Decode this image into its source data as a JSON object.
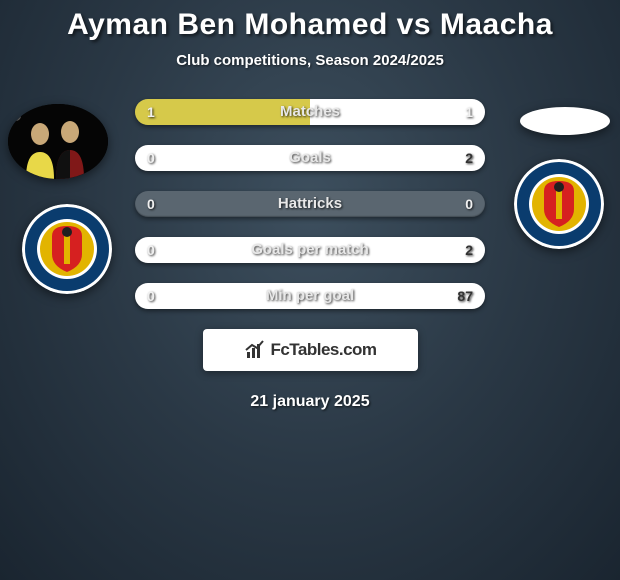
{
  "title": "Ayman Ben Mohamed vs Maacha",
  "subtitle": "Club competitions, Season 2024/2025",
  "date": "21 january 2025",
  "branding": "FcTables.com",
  "player1_color": "#d6c94a",
  "player2_color": "#ffffff",
  "bar_bg_color": "#5a6670",
  "club_badge": {
    "outer": "#ffffff",
    "ring": "#0a3c6e",
    "inner": "#e2b400",
    "accent": "#d62020"
  },
  "stats": [
    {
      "label": "Matches",
      "left_val": "1",
      "right_val": "1",
      "left_pct": 50,
      "right_pct": 50
    },
    {
      "label": "Goals",
      "left_val": "0",
      "right_val": "2",
      "left_pct": 0,
      "right_pct": 100
    },
    {
      "label": "Hattricks",
      "left_val": "0",
      "right_val": "0",
      "left_pct": 0,
      "right_pct": 0
    },
    {
      "label": "Goals per match",
      "left_val": "0",
      "right_val": "2",
      "left_pct": 0,
      "right_pct": 100
    },
    {
      "label": "Min per goal",
      "left_val": "0",
      "right_val": "87",
      "left_pct": 0,
      "right_pct": 100
    }
  ]
}
